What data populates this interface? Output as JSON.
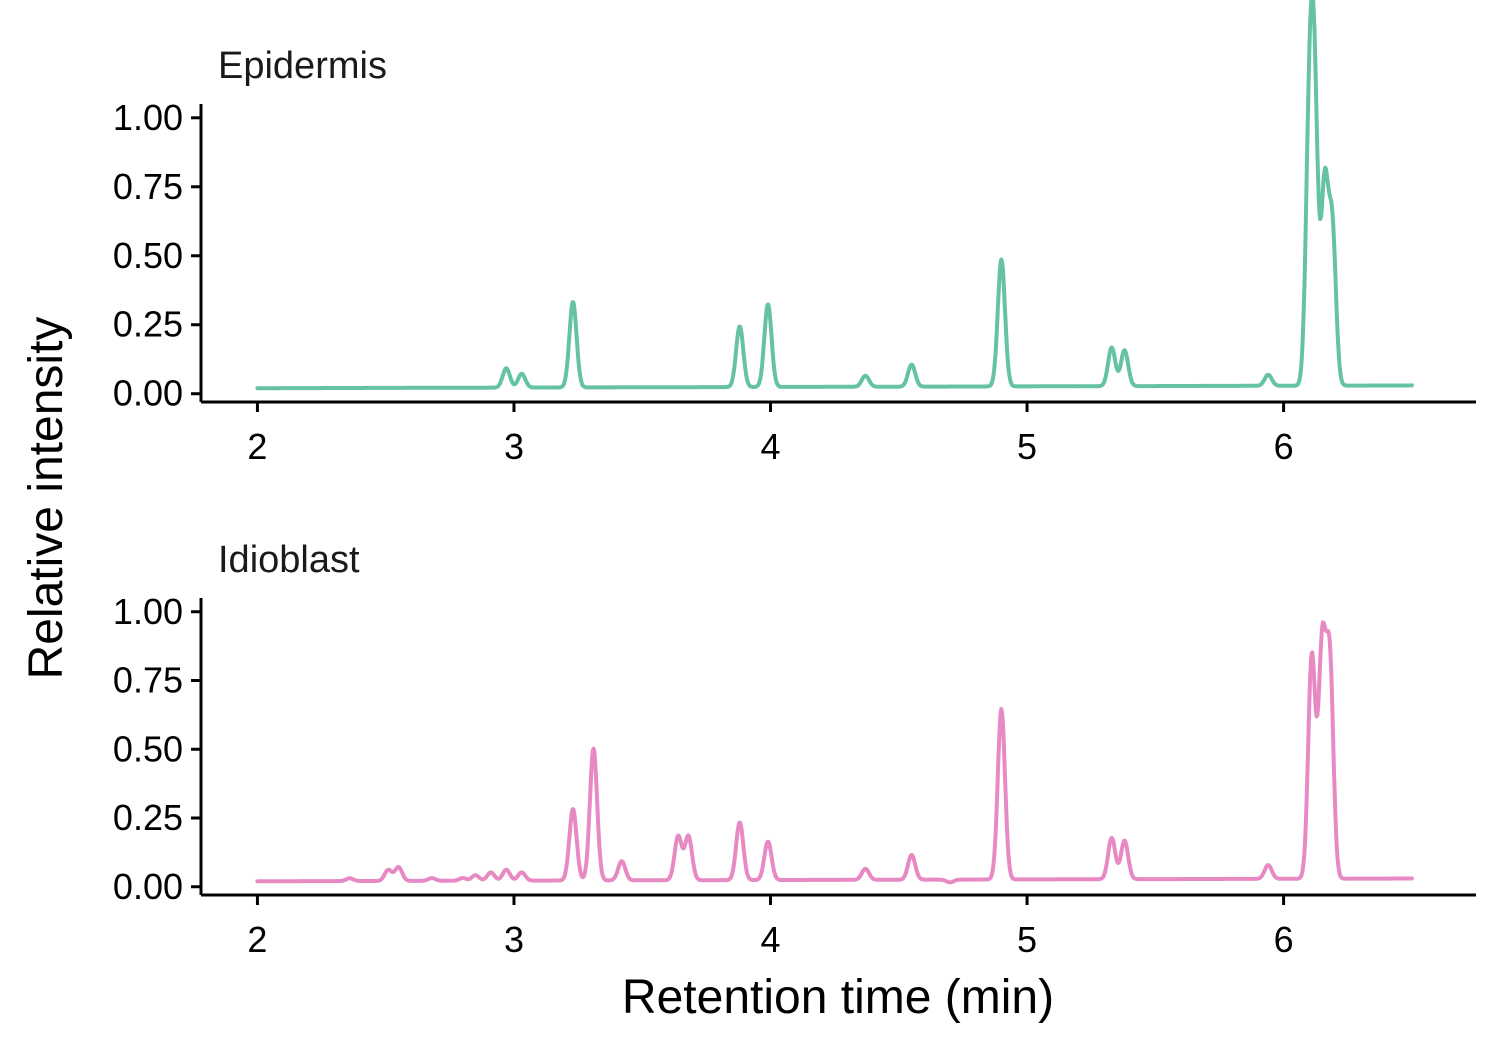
{
  "chart_data": {
    "type": "line",
    "title": "",
    "xlabel": "Retention time (min)",
    "ylabel": "Relative intensity",
    "xlim": [
      1.78,
      6.75
    ],
    "ylim": [
      -0.03,
      1.05
    ],
    "x_ticks": [
      2,
      3,
      4,
      5,
      6
    ],
    "x_tick_labels": [
      "2",
      "3",
      "4",
      "5",
      "6"
    ],
    "y_ticks": [
      0,
      0.25,
      0.5,
      0.75,
      1
    ],
    "y_tick_labels": [
      "0.00",
      "0.25",
      "0.50",
      "0.75",
      "1.00"
    ],
    "grid": false,
    "legend": "none",
    "panels": [
      {
        "title": "Epidermis",
        "color": "#66C2A5",
        "x_range": [
          2.0,
          6.5
        ],
        "baseline": 0.02,
        "end_baseline": 0.03,
        "peaks": [
          {
            "x": 2.97,
            "height": 0.09
          },
          {
            "x": 3.03,
            "height": 0.07
          },
          {
            "x": 3.23,
            "height": 0.33
          },
          {
            "x": 3.53,
            "height": 0.02
          },
          {
            "x": 3.73,
            "height": 0.02
          },
          {
            "x": 3.88,
            "height": 0.24
          },
          {
            "x": 3.99,
            "height": 0.32
          },
          {
            "x": 4.15,
            "height": 0.02
          },
          {
            "x": 4.37,
            "height": 0.06
          },
          {
            "x": 4.55,
            "height": 0.1
          },
          {
            "x": 4.9,
            "height": 0.48
          },
          {
            "x": 5.33,
            "height": 0.16
          },
          {
            "x": 5.38,
            "height": 0.15
          },
          {
            "x": 5.94,
            "height": 0.06
          },
          {
            "x": 6.1,
            "height": 0.87
          },
          {
            "x": 6.12,
            "height": 1.0
          },
          {
            "x": 6.16,
            "height": 0.73
          },
          {
            "x": 6.19,
            "height": 0.58
          }
        ]
      },
      {
        "title": "Idioblast",
        "color": "#E78AC3",
        "x_range": [
          2.0,
          6.5
        ],
        "baseline": 0.02,
        "end_baseline": 0.03,
        "peaks": [
          {
            "x": 2.36,
            "height": 0.03
          },
          {
            "x": 2.51,
            "height": 0.06
          },
          {
            "x": 2.55,
            "height": 0.07
          },
          {
            "x": 2.68,
            "height": 0.03
          },
          {
            "x": 2.8,
            "height": 0.03
          },
          {
            "x": 2.85,
            "height": 0.04
          },
          {
            "x": 2.91,
            "height": 0.05
          },
          {
            "x": 2.97,
            "height": 0.06
          },
          {
            "x": 3.03,
            "height": 0.05
          },
          {
            "x": 3.23,
            "height": 0.28
          },
          {
            "x": 3.31,
            "height": 0.5
          },
          {
            "x": 3.42,
            "height": 0.09
          },
          {
            "x": 3.64,
            "height": 0.18
          },
          {
            "x": 3.68,
            "height": 0.18
          },
          {
            "x": 3.88,
            "height": 0.23
          },
          {
            "x": 3.99,
            "height": 0.16
          },
          {
            "x": 4.15,
            "height": 0.02
          },
          {
            "x": 4.37,
            "height": 0.06
          },
          {
            "x": 4.55,
            "height": 0.11
          },
          {
            "x": 4.7,
            "height": 0.01
          },
          {
            "x": 4.9,
            "height": 0.64
          },
          {
            "x": 5.33,
            "height": 0.17
          },
          {
            "x": 5.38,
            "height": 0.16
          },
          {
            "x": 5.94,
            "height": 0.07
          },
          {
            "x": 6.11,
            "height": 0.83
          },
          {
            "x": 6.15,
            "height": 0.84
          },
          {
            "x": 6.18,
            "height": 0.8
          }
        ]
      }
    ]
  }
}
